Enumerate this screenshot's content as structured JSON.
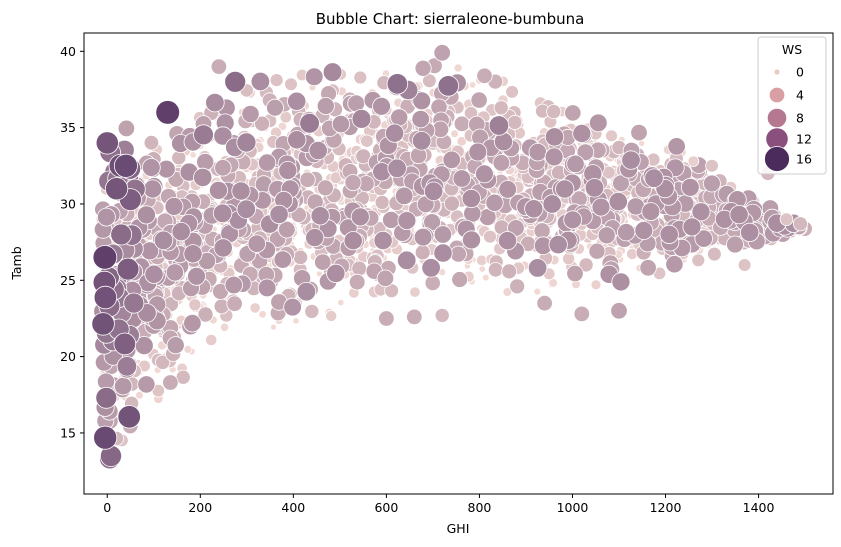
{
  "chart_data": {
    "type": "scatter",
    "title": "Bubble Chart: sierraleone-bumbuna",
    "xlabel": "GHI",
    "ylabel": "Tamb",
    "xlim": [
      -50,
      1560
    ],
    "ylim": [
      11,
      41.2
    ],
    "xticks": [
      0,
      200,
      400,
      600,
      800,
      1000,
      1200,
      1400
    ],
    "yticks": [
      15,
      20,
      25,
      30,
      35,
      40
    ],
    "grid": false,
    "size_variable": "WS",
    "hue_variable": "WS",
    "colors": {
      "ws_low": "#f2d9d4",
      "ws_high": "#4b2a5c",
      "bubble_edge": "#ffffff"
    },
    "legend": {
      "title": "WS",
      "placement": "top-right",
      "entries": [
        {
          "label": "0",
          "ws": 0,
          "color": "#ecc8c0"
        },
        {
          "label": "4",
          "ws": 4,
          "color": "#d9a0a3"
        },
        {
          "label": "8",
          "ws": 8,
          "color": "#b57890"
        },
        {
          "label": "12",
          "ws": 12,
          "color": "#8a4f7d"
        },
        {
          "label": "16",
          "ws": 16,
          "color": "#4b2a5c"
        }
      ]
    },
    "highlighted_points": [
      {
        "x": 0,
        "y": 34,
        "ws": 12
      },
      {
        "x": 130,
        "y": 36,
        "ws": 14
      },
      {
        "x": 275,
        "y": 38,
        "ws": 10
      },
      {
        "x": 40,
        "y": 32.5,
        "ws": 13
      },
      {
        "x": -5,
        "y": 26.5,
        "ws": 14
      },
      {
        "x": 20,
        "y": 31,
        "ws": 12
      },
      {
        "x": 30,
        "y": 28,
        "ws": 10
      }
    ],
    "extreme_points": [
      {
        "x": 1490,
        "y": 28.7,
        "ws": 3
      },
      {
        "x": 1460,
        "y": 29,
        "ws": 2
      },
      {
        "x": 1300,
        "y": 32.5,
        "ws": 2
      },
      {
        "x": 1420,
        "y": 32,
        "ws": 3
      },
      {
        "x": 1260,
        "y": 32.8,
        "ws": 1
      },
      {
        "x": 1100,
        "y": 23,
        "ws": 5
      },
      {
        "x": 1020,
        "y": 22.8,
        "ws": 4
      },
      {
        "x": 600,
        "y": 22.5,
        "ws": 4
      },
      {
        "x": 660,
        "y": 22.6,
        "ws": 4
      },
      {
        "x": 720,
        "y": 22.7,
        "ws": 3
      },
      {
        "x": 240,
        "y": 39,
        "ws": 4
      },
      {
        "x": 720,
        "y": 39.9,
        "ws": 5
      },
      {
        "x": 940,
        "y": 23.5,
        "ws": 4
      },
      {
        "x": 1370,
        "y": 26,
        "ws": 2
      }
    ]
  }
}
